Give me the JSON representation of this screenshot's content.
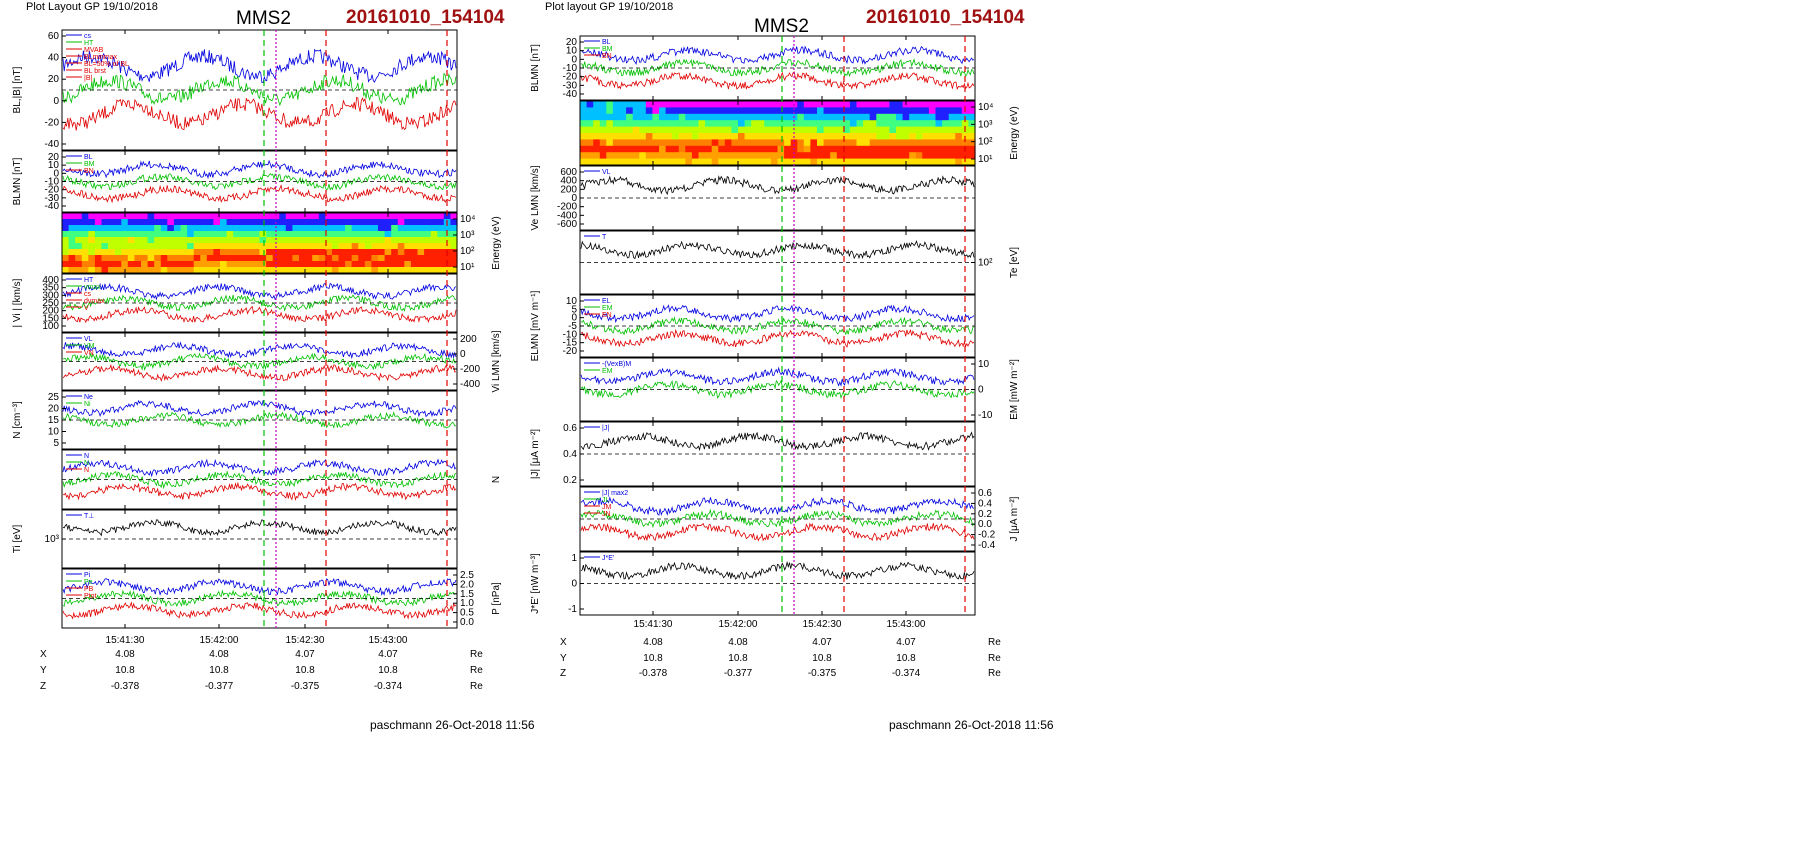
{
  "header": {
    "left_tag": "Plot Layout GP 19/10/2018",
    "right_tag": "Plot layout GP 19/10/2018",
    "left_sc": "MMS2",
    "right_sc": "MMS2",
    "left_event": "20161010_154104",
    "right_event": "20161010_154104",
    "left_footer": "paschmann 26-Oct-2018 11:56",
    "right_footer": "paschmann 26-Oct-2018 11:56"
  },
  "colors": {
    "red": "#e00000",
    "green": "#00c000",
    "blue": "#0000e0",
    "magenta": "#c000c0",
    "grey": "#888888",
    "black": "#000000",
    "title": "#a01010"
  },
  "chart_data": [
    {
      "type": "line",
      "plot": "left",
      "xticks": [
        "15:41:30",
        "15:42:00",
        "15:42:30",
        "15:43:00"
      ],
      "ephemeris": {
        "rows": [
          {
            "name": "X",
            "values": [
              "4.08",
              "4.08",
              "4.07",
              "4.07"
            ],
            "unit": "Re"
          },
          {
            "name": "Y",
            "values": [
              "10.8",
              "10.8",
              "10.8",
              "10.8"
            ],
            "unit": "Re"
          },
          {
            "name": "Z",
            "values": [
              "-0.378",
              "-0.377",
              "-0.375",
              "-0.374"
            ],
            "unit": "Re"
          }
        ]
      },
      "panels": [
        {
          "ylabel": "BL,|B| [nT]",
          "axis_side": "left",
          "yticks": [
            "60",
            "40",
            "20",
            "0",
            "-20",
            "-40"
          ],
          "legend": [
            "cs",
            "HT",
            "MVAB",
            "BLminmax",
            "BL=50% of BL",
            "BL brst",
            "|B|"
          ]
        },
        {
          "ylabel": "BLMN [nT]",
          "axis_side": "left",
          "yticks": [
            "20",
            "10",
            "0",
            "-10",
            "-20",
            "-30",
            "-40"
          ],
          "legend": [
            "BL",
            "BM",
            "BN"
          ]
        },
        {
          "ylabel": "Energy (eV)",
          "axis_side": "right",
          "yticks": [
            "10⁴",
            "10³",
            "10²",
            "10¹"
          ],
          "kind": "spectrogram"
        },
        {
          "ylabel": "| Vi | [km/s]",
          "axis_side": "left",
          "yticks": [
            "400",
            "350",
            "300",
            "250",
            "200",
            "150",
            "100"
          ],
          "legend": [
            "HT",
            "vmax",
            "cs",
            "dvmax",
            "V"
          ]
        },
        {
          "ylabel": "Vi LMN [km/s]",
          "axis_side": "right",
          "yticks": [
            "200",
            "0",
            "-200",
            "-400"
          ],
          "legend": [
            "VL",
            "VM",
            "VN"
          ]
        },
        {
          "ylabel": "N [cm⁻³]",
          "axis_side": "left",
          "yticks": [
            "25",
            "20",
            "15",
            "10",
            "5"
          ],
          "legend": [
            "Ne",
            "Ni"
          ]
        },
        {
          "ylabel": "N",
          "axis_side": "right",
          "yticks": [],
          "legend": [
            "N",
            "N",
            "N"
          ]
        },
        {
          "ylabel": "Ti [eV]",
          "axis_side": "left",
          "yticks": [
            "10³"
          ],
          "legend": [
            "T⊥"
          ]
        },
        {
          "ylabel": "P [nPa]",
          "axis_side": "right",
          "yticks": [
            "2.5",
            "2.0",
            "1.5",
            "1.0",
            "0.5",
            "0.0"
          ],
          "legend": [
            "Pi",
            "Pe",
            "PB",
            "Ptot"
          ]
        }
      ]
    },
    {
      "type": "line",
      "plot": "right",
      "xticks": [
        "15:41:30",
        "15:42:00",
        "15:42:30",
        "15:43:00"
      ],
      "ephemeris": {
        "rows": [
          {
            "name": "X",
            "values": [
              "4.08",
              "4.08",
              "4.07",
              "4.07"
            ],
            "unit": "Re"
          },
          {
            "name": "Y",
            "values": [
              "10.8",
              "10.8",
              "10.8",
              "10.8"
            ],
            "unit": "Re"
          },
          {
            "name": "Z",
            "values": [
              "-0.378",
              "-0.377",
              "-0.375",
              "-0.374"
            ],
            "unit": "Re"
          }
        ]
      },
      "panels": [
        {
          "ylabel": "BLMN [nT]",
          "axis_side": "left",
          "yticks": [
            "20",
            "10",
            "0",
            "-10",
            "-20",
            "-30",
            "-40"
          ],
          "legend": [
            "BL",
            "BM",
            "BN"
          ]
        },
        {
          "ylabel": "Energy (eV)",
          "axis_side": "right",
          "yticks": [
            "10⁴",
            "10³",
            "10²",
            "10¹"
          ],
          "kind": "spectrogram"
        },
        {
          "ylabel": "Ve LMN [km/s]",
          "axis_side": "left",
          "yticks": [
            "600",
            "400",
            "200",
            "0",
            "-200",
            "-400",
            "-600"
          ],
          "legend": [
            "VL"
          ]
        },
        {
          "ylabel": "Te [eV]",
          "axis_side": "right",
          "yticks": [
            "10²"
          ],
          "legend": [
            "T"
          ]
        },
        {
          "ylabel": "ELMN [mV m⁻¹]",
          "axis_side": "left",
          "yticks": [
            "10",
            "5",
            "0",
            "-5",
            "-10",
            "-15",
            "-20"
          ],
          "legend": [
            "EL",
            "EM",
            "EN"
          ]
        },
        {
          "ylabel": "EM [mW m⁻²]",
          "axis_side": "right",
          "yticks": [
            "10",
            "0",
            "-10"
          ],
          "legend": [
            "-(VexB)M",
            "EM"
          ]
        },
        {
          "ylabel": "|J| [μA m⁻²]",
          "axis_side": "left",
          "yticks": [
            "0.6",
            "0.4",
            "0.2"
          ],
          "legend": [
            "|J|"
          ]
        },
        {
          "ylabel": "J [μA m⁻²]",
          "axis_side": "right",
          "yticks": [
            "0.6",
            "0.4",
            "0.2",
            "0.0",
            "-0.2",
            "-0.4"
          ],
          "legend": [
            "|J| max2",
            "JL",
            "JM",
            "JN"
          ]
        },
        {
          "ylabel": "J*E' [nW m⁻³]",
          "axis_side": "left",
          "yticks": [
            "1",
            "0",
            "-1"
          ],
          "legend": [
            "J*E'"
          ]
        }
      ]
    }
  ]
}
